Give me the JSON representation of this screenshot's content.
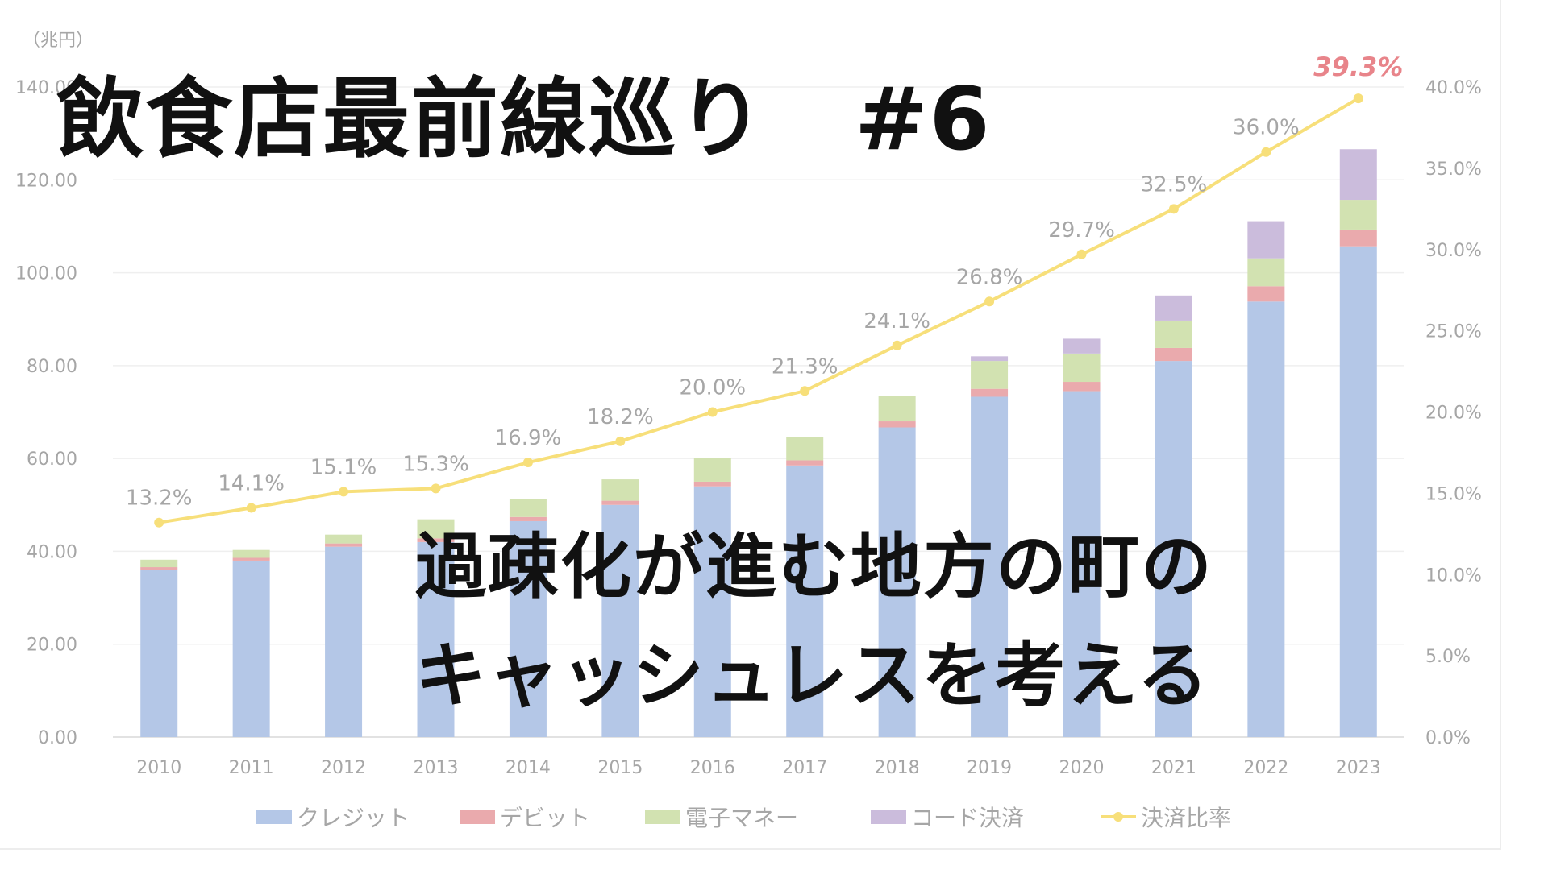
{
  "overlay": {
    "title": "飲食店最前線巡り　#6",
    "subtitle_line1": "過疎化が進む地方の町の",
    "subtitle_line2": "キャッシュレスを考える"
  },
  "chart_data": {
    "type": "bar",
    "stacked": true,
    "unit_label": "（兆円）",
    "categories": [
      "2010",
      "2011",
      "2012",
      "2013",
      "2014",
      "2015",
      "2016",
      "2017",
      "2018",
      "2019",
      "2020",
      "2021",
      "2022",
      "2023"
    ],
    "ylim": [
      0,
      140
    ],
    "y_ticks": [
      "0.00",
      "20.00",
      "40.00",
      "60.00",
      "80.00",
      "100.00",
      "120.00",
      "140.00"
    ],
    "y2lim": [
      0,
      40
    ],
    "y2_ticks": [
      "0.0%",
      "5.0%",
      "10.0%",
      "15.0%",
      "20.0%",
      "25.0%",
      "30.0%",
      "35.0%",
      "40.0%"
    ],
    "grid": true,
    "legend_position": "bottom",
    "series": [
      {
        "name": "クレジット",
        "color": "#b4c7e7",
        "values": [
          36.0,
          38.0,
          41.0,
          42.0,
          46.5,
          50.0,
          54.0,
          58.5,
          66.7,
          73.3,
          74.5,
          81.0,
          93.8,
          105.7
        ]
      },
      {
        "name": "デビット",
        "color": "#eaaaad",
        "values": [
          0.6,
          0.6,
          0.7,
          0.8,
          0.9,
          0.9,
          1.0,
          1.1,
          1.3,
          1.7,
          2.0,
          2.8,
          3.3,
          3.6
        ]
      },
      {
        "name": "電子マネー",
        "color": "#d2e2b1",
        "values": [
          1.6,
          1.7,
          1.9,
          4.1,
          3.9,
          4.6,
          5.1,
          5.1,
          5.5,
          6.0,
          6.1,
          5.9,
          6.0,
          6.4
        ]
      },
      {
        "name": "コード決済",
        "color": "#cbbcdc",
        "values": [
          0,
          0,
          0,
          0,
          0,
          0,
          0,
          0,
          0,
          1.0,
          3.2,
          5.4,
          8.0,
          10.9
        ]
      }
    ],
    "line_series": {
      "name": "決済比率",
      "color": "#f7df7a",
      "axis": "right",
      "values": [
        13.2,
        14.1,
        15.1,
        15.3,
        16.9,
        18.2,
        20.0,
        21.3,
        24.1,
        26.8,
        29.7,
        32.5,
        36.0,
        39.3
      ],
      "labels": [
        "13.2%",
        "14.1%",
        "15.1%",
        "15.3%",
        "16.9%",
        "18.2%",
        "20.0%",
        "21.3%",
        "24.1%",
        "26.8%",
        "29.7%",
        "32.5%",
        "36.0%",
        "39.3%"
      ],
      "highlight_color": "#e8848a"
    }
  }
}
